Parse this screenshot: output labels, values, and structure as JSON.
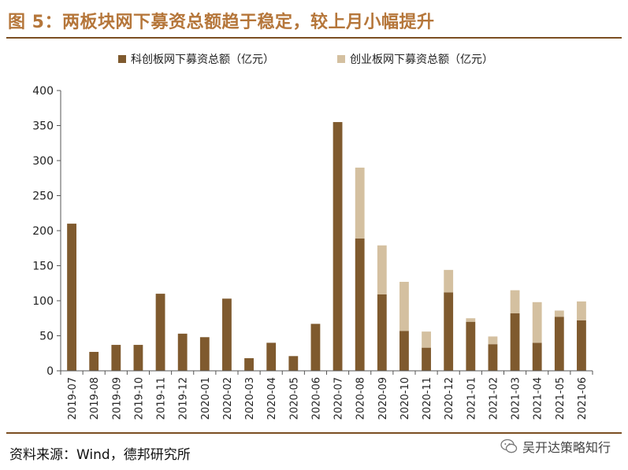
{
  "title": "图 5：两板块网下募资总额趋于稳定，较上月小幅提升",
  "source": "资料来源：Wind，德邦研究所",
  "watermark": "吴开达策略知行",
  "colors": {
    "kcb": "#7f5a2e",
    "cyb": "#d4c0a0",
    "title": "#b5763a",
    "rule": "#7b4e22"
  },
  "chart_data": {
    "type": "bar",
    "stacked": true,
    "categories": [
      "2019-07",
      "2019-08",
      "2019-09",
      "2019-10",
      "2019-11",
      "2019-12",
      "2020-01",
      "2020-02",
      "2020-03",
      "2020-04",
      "2020-05",
      "2020-06",
      "2020-07",
      "2020-08",
      "2020-09",
      "2020-10",
      "2020-11",
      "2020-12",
      "2021-01",
      "2021-02",
      "2021-03",
      "2021-04",
      "2021-05",
      "2021-06"
    ],
    "series": [
      {
        "name": "科创板网下募资总额（亿元）",
        "color": "#7f5a2e",
        "values": [
          210,
          27,
          37,
          37,
          110,
          53,
          48,
          103,
          18,
          40,
          21,
          67,
          355,
          189,
          109,
          57,
          33,
          112,
          70,
          38,
          82,
          40,
          77,
          72
        ]
      },
      {
        "name": "创业板网下募资总额（亿元）",
        "color": "#d4c0a0",
        "values": [
          0,
          0,
          0,
          0,
          0,
          0,
          0,
          0,
          0,
          0,
          0,
          0,
          0,
          101,
          70,
          70,
          23,
          32,
          5,
          11,
          33,
          58,
          9,
          27
        ]
      }
    ],
    "xlabel": "",
    "ylabel": "",
    "ylim": [
      0,
      400
    ],
    "yticks": [
      0,
      50,
      100,
      150,
      200,
      250,
      300,
      350,
      400
    ],
    "legend_position": "top-center"
  }
}
